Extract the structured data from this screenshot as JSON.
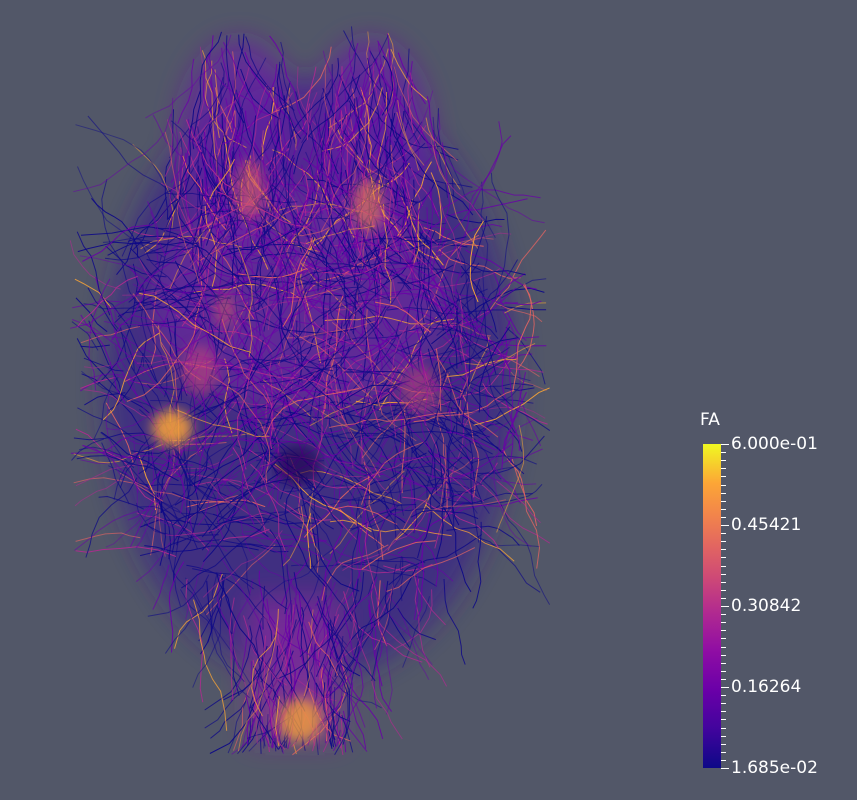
{
  "scene": {
    "background": "#525768",
    "content": "brain tractography streamlines",
    "colormap": [
      "#0d0887",
      "#6a00a8",
      "#b12a90",
      "#e16462",
      "#fca636",
      "#f0f921"
    ]
  },
  "colorbar": {
    "title": "FA",
    "labels": [
      "6.000e-01",
      "0.45421",
      "0.30842",
      "0.16264",
      "1.685e-02"
    ],
    "range": [
      0.01685,
      0.6
    ]
  }
}
